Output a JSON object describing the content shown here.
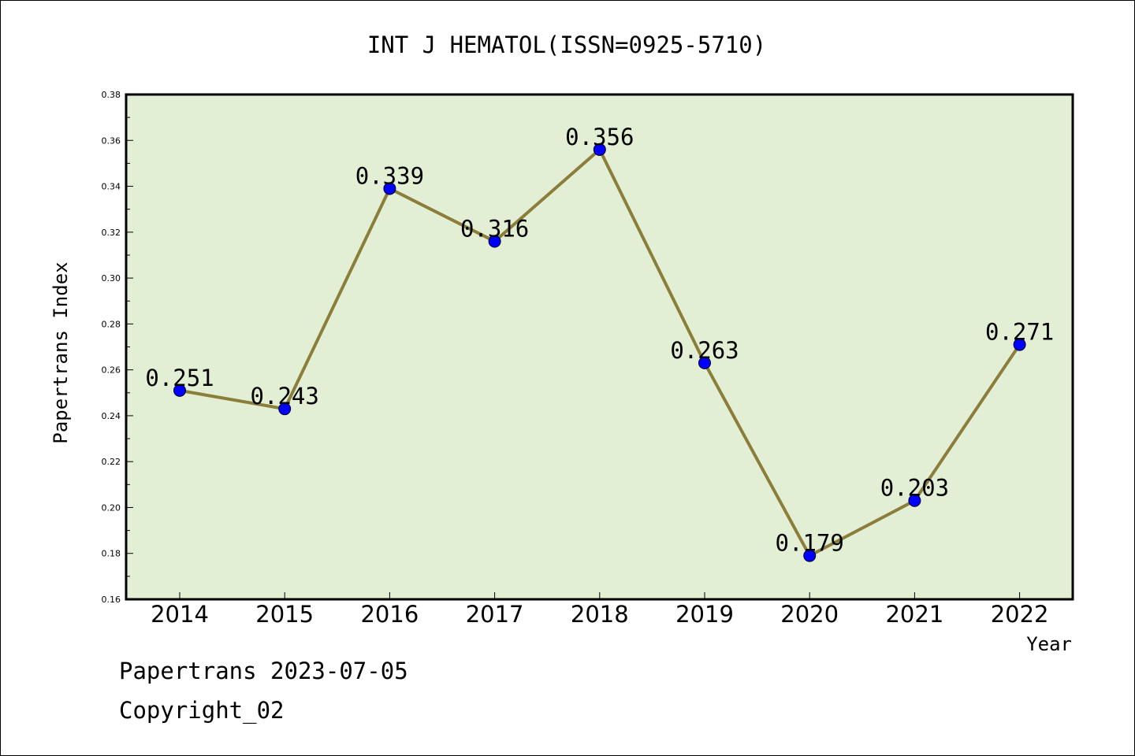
{
  "chart_data": {
    "type": "line",
    "title": "INT J HEMATOL(ISSN=0925-5710)",
    "xlabel": "Year",
    "ylabel": "Papertrans Index",
    "x": [
      "2014",
      "2015",
      "2016",
      "2017",
      "2018",
      "2019",
      "2020",
      "2021",
      "2022"
    ],
    "series": [
      {
        "values": [
          0.251,
          0.243,
          0.339,
          0.316,
          0.356,
          0.263,
          0.179,
          0.203,
          0.271
        ]
      }
    ],
    "data_labels": [
      "0.251",
      "0.243",
      "0.339",
      "0.316",
      "0.356",
      "0.263",
      "0.179",
      "0.203",
      "0.271"
    ],
    "ylim": [
      0.16,
      0.38
    ],
    "yticks": [
      "0.16",
      "0.18",
      "0.20",
      "0.22",
      "0.24",
      "0.26",
      "0.28",
      "0.30",
      "0.32",
      "0.34",
      "0.36",
      "0.38"
    ],
    "grid": false,
    "colors": {
      "plot_bg": "#e2efd5",
      "line": "#8b7d3a",
      "marker": "#0000ff"
    }
  },
  "footer": {
    "line1": "Papertrans 2023-07-05",
    "line2": "Copyright_02"
  }
}
